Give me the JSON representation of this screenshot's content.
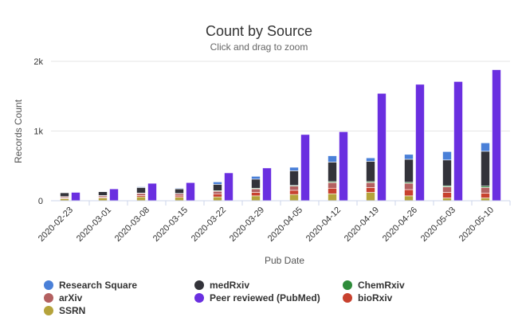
{
  "chart_data": {
    "type": "bar",
    "title": "Count by Source",
    "subtitle": "Click and drag to zoom",
    "xlabel": "Pub Date",
    "ylabel": "Records Count",
    "ylim": [
      0,
      2000
    ],
    "yticks": [
      0,
      1000,
      2000
    ],
    "ytick_labels": [
      "0",
      "1k",
      "2k"
    ],
    "categories": [
      "2020-02-23",
      "2020-03-01",
      "2020-03-08",
      "2020-03-15",
      "2020-03-22",
      "2020-03-29",
      "2020-04-05",
      "2020-04-12",
      "2020-04-19",
      "2020-04-26",
      "2020-05-03",
      "2020-05-10"
    ],
    "stacks": [
      {
        "name": "preprints",
        "series": [
          "SSRN",
          "bioRxiv",
          "arXiv",
          "ChemRxiv",
          "medRxiv",
          "Research Square"
        ]
      },
      {
        "name": "peer-reviewed",
        "series": [
          "Peer reviewed (PubMed)"
        ]
      }
    ],
    "series": [
      {
        "name": "SSRN",
        "color": "#b5a33b",
        "values": [
          30,
          40,
          55,
          50,
          55,
          70,
          90,
          100,
          120,
          70,
          40,
          40
        ]
      },
      {
        "name": "bioRxiv",
        "color": "#c8412e",
        "values": [
          10,
          10,
          20,
          20,
          40,
          50,
          60,
          80,
          70,
          90,
          80,
          70
        ]
      },
      {
        "name": "arXiv",
        "color": "#b36060",
        "values": [
          15,
          20,
          30,
          30,
          40,
          50,
          60,
          80,
          70,
          90,
          80,
          80
        ]
      },
      {
        "name": "ChemRxiv",
        "color": "#2e8b3a",
        "values": [
          5,
          5,
          5,
          5,
          10,
          10,
          10,
          15,
          15,
          15,
          15,
          20
        ]
      },
      {
        "name": "medRxiv",
        "color": "#33333a",
        "values": [
          55,
          55,
          80,
          65,
          90,
          130,
          210,
          280,
          290,
          330,
          370,
          500
        ]
      },
      {
        "name": "Research Square",
        "color": "#4a80d8",
        "values": [
          5,
          5,
          10,
          10,
          35,
          40,
          50,
          90,
          50,
          70,
          120,
          120
        ]
      },
      {
        "name": "Peer reviewed (PubMed)",
        "color": "#6a2fe0",
        "values": [
          120,
          170,
          250,
          260,
          400,
          470,
          950,
          990,
          1540,
          1670,
          1710,
          1880
        ]
      }
    ],
    "legend": {
      "placement": "bottom-left",
      "rows": [
        [
          "Research Square",
          "medRxiv",
          "ChemRxiv"
        ],
        [
          "arXiv",
          "Peer reviewed (PubMed)",
          "bioRxiv"
        ],
        [
          "SSRN"
        ]
      ]
    },
    "grid": true
  }
}
